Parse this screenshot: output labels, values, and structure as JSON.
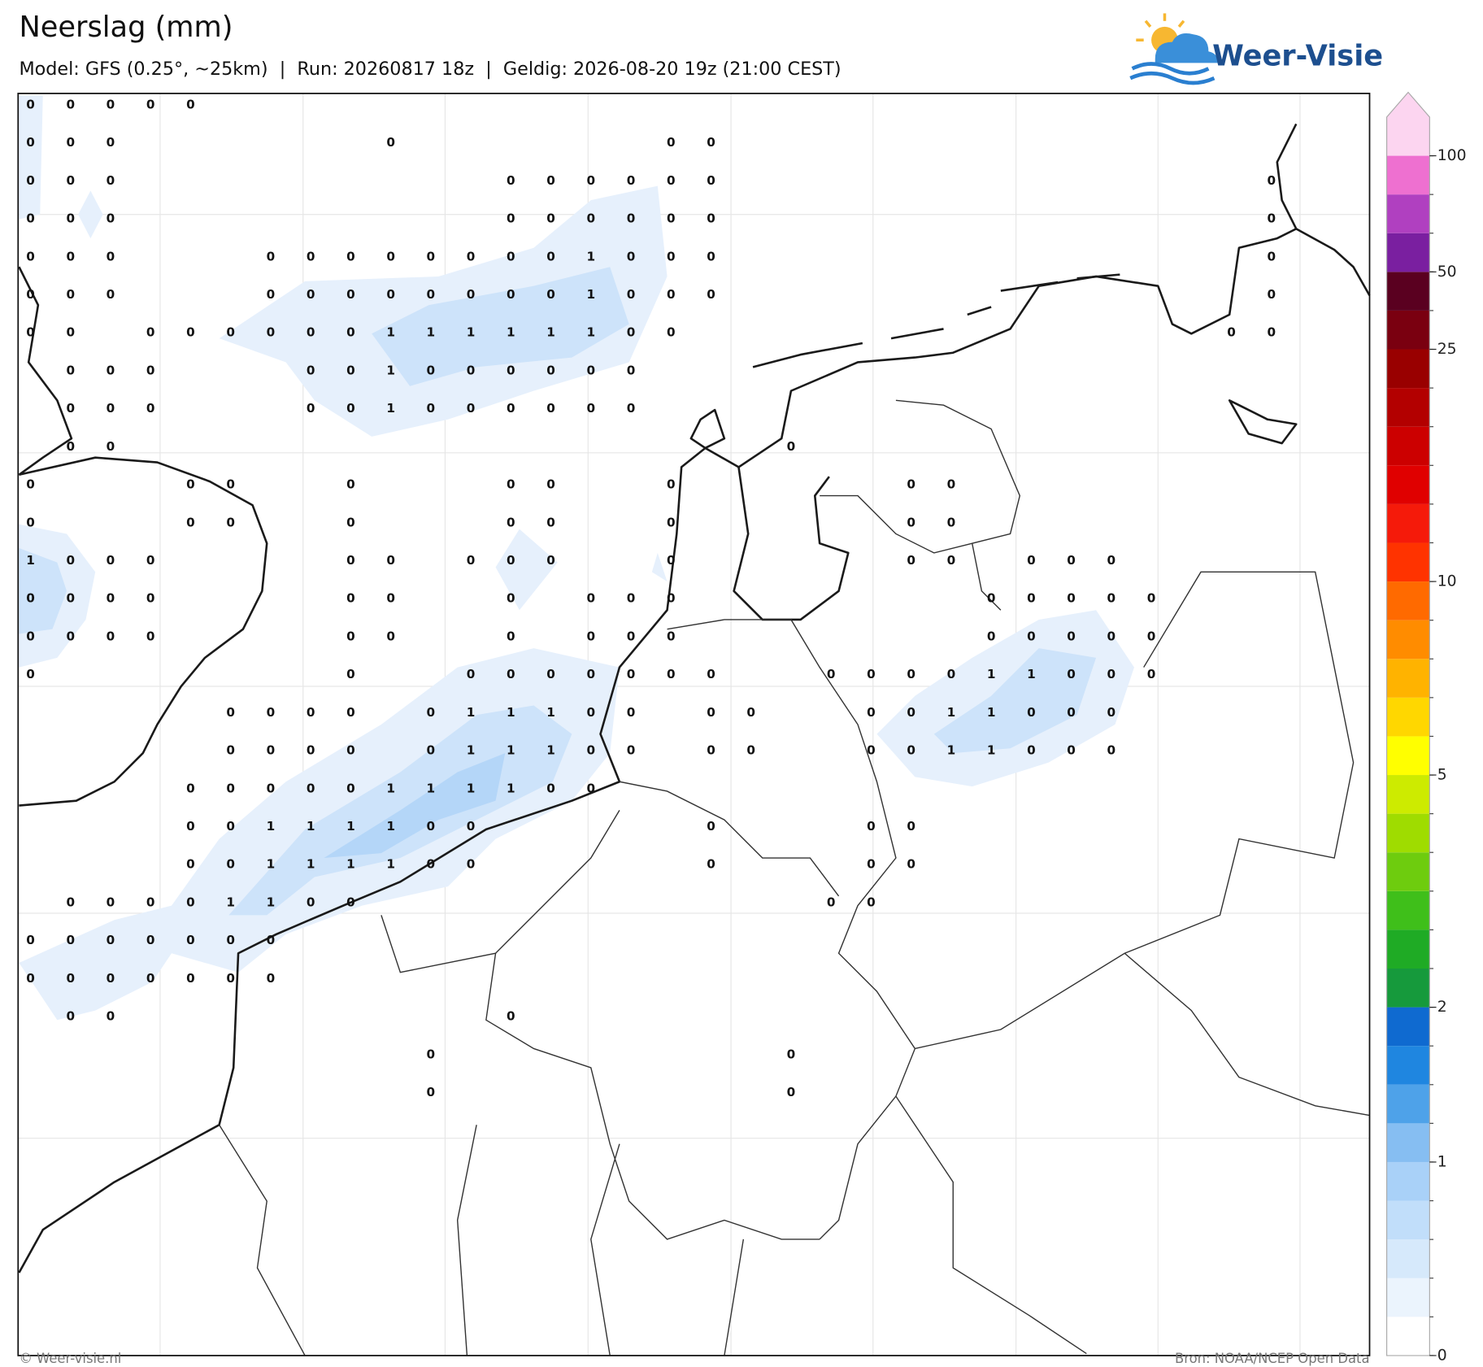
{
  "header": {
    "title": "Neerslag (mm)",
    "subtitle": "Model: GFS (0.25°, ~25km)  |  Run: 20260817 18z  |  Geldig: 2026-08-20 19z (21:00 CEST)"
  },
  "logo": {
    "text": "Weer-Visie"
  },
  "map": {
    "grid": [
      [
        0,
        0,
        0,
        0,
        0,
        null,
        null,
        null,
        null,
        null,
        null,
        null,
        null,
        null,
        null,
        null,
        null,
        null,
        null,
        null,
        null,
        null,
        null,
        null,
        null,
        null,
        null,
        null,
        null,
        null,
        null,
        null
      ],
      [
        0,
        0,
        0,
        null,
        null,
        null,
        null,
        null,
        null,
        0,
        null,
        null,
        null,
        null,
        null,
        null,
        0,
        0,
        null,
        null,
        null,
        null,
        null,
        null,
        null,
        null,
        null,
        null,
        null,
        null,
        null,
        null
      ],
      [
        0,
        0,
        0,
        null,
        null,
        null,
        null,
        null,
        null,
        null,
        null,
        null,
        0,
        0,
        0,
        0,
        0,
        0,
        null,
        null,
        null,
        null,
        null,
        null,
        null,
        null,
        null,
        null,
        null,
        null,
        null,
        0
      ],
      [
        0,
        0,
        0,
        null,
        null,
        null,
        null,
        null,
        null,
        null,
        null,
        null,
        0,
        0,
        0,
        0,
        0,
        0,
        null,
        null,
        null,
        null,
        null,
        null,
        null,
        null,
        null,
        null,
        null,
        null,
        null,
        0
      ],
      [
        0,
        0,
        0,
        null,
        null,
        null,
        0,
        0,
        0,
        0,
        0,
        0,
        0,
        0,
        1,
        0,
        0,
        0,
        null,
        null,
        null,
        null,
        null,
        null,
        null,
        null,
        null,
        null,
        null,
        null,
        null,
        0
      ],
      [
        0,
        0,
        0,
        null,
        null,
        null,
        0,
        0,
        0,
        0,
        0,
        0,
        0,
        0,
        1,
        0,
        0,
        0,
        null,
        null,
        null,
        null,
        null,
        null,
        null,
        null,
        null,
        null,
        null,
        null,
        null,
        0
      ],
      [
        0,
        0,
        null,
        0,
        0,
        0,
        0,
        0,
        0,
        1,
        1,
        1,
        1,
        1,
        1,
        0,
        0,
        null,
        null,
        null,
        null,
        null,
        null,
        null,
        null,
        null,
        null,
        null,
        null,
        null,
        0,
        0
      ],
      [
        null,
        0,
        0,
        0,
        null,
        null,
        null,
        0,
        0,
        1,
        0,
        0,
        0,
        0,
        0,
        0,
        null,
        null,
        null,
        null,
        null,
        null,
        null,
        null,
        null,
        null,
        null,
        null,
        null,
        null,
        null,
        null
      ],
      [
        null,
        0,
        0,
        0,
        null,
        null,
        null,
        0,
        0,
        1,
        0,
        0,
        0,
        0,
        0,
        0,
        null,
        null,
        null,
        null,
        null,
        null,
        null,
        null,
        null,
        null,
        null,
        null,
        null,
        null,
        null,
        null
      ],
      [
        null,
        0,
        0,
        null,
        null,
        null,
        null,
        null,
        null,
        null,
        null,
        null,
        null,
        null,
        null,
        null,
        null,
        null,
        null,
        0,
        null,
        null,
        null,
        null,
        null,
        null,
        null,
        null,
        null,
        null,
        null,
        null
      ],
      [
        0,
        null,
        null,
        null,
        0,
        0,
        null,
        null,
        0,
        null,
        null,
        null,
        0,
        0,
        null,
        null,
        0,
        null,
        null,
        null,
        null,
        null,
        0,
        0,
        null,
        null,
        null,
        null,
        null,
        null,
        null,
        null
      ],
      [
        0,
        null,
        null,
        null,
        0,
        0,
        null,
        null,
        0,
        null,
        null,
        null,
        0,
        0,
        null,
        null,
        0,
        null,
        null,
        null,
        null,
        null,
        0,
        0,
        null,
        null,
        null,
        null,
        null,
        null,
        null,
        null
      ],
      [
        1,
        0,
        0,
        0,
        null,
        null,
        null,
        null,
        0,
        0,
        null,
        0,
        0,
        0,
        null,
        null,
        0,
        null,
        null,
        null,
        null,
        null,
        0,
        0,
        null,
        0,
        0,
        0,
        null,
        null,
        null,
        null
      ],
      [
        0,
        0,
        0,
        0,
        null,
        null,
        null,
        null,
        0,
        0,
        null,
        null,
        0,
        null,
        0,
        0,
        0,
        null,
        null,
        null,
        null,
        null,
        null,
        null,
        0,
        0,
        0,
        0,
        0,
        null,
        null,
        null
      ],
      [
        0,
        0,
        0,
        0,
        null,
        null,
        null,
        null,
        0,
        0,
        null,
        null,
        0,
        null,
        0,
        0,
        0,
        null,
        null,
        null,
        null,
        null,
        null,
        null,
        0,
        0,
        0,
        0,
        0,
        null,
        null,
        null
      ],
      [
        0,
        null,
        null,
        null,
        null,
        null,
        null,
        null,
        0,
        null,
        null,
        0,
        0,
        0,
        0,
        0,
        0,
        0,
        null,
        null,
        0,
        0,
        0,
        0,
        1,
        1,
        0,
        0,
        0,
        null,
        null,
        null
      ],
      [
        null,
        null,
        null,
        null,
        null,
        0,
        0,
        0,
        0,
        null,
        0,
        1,
        1,
        1,
        0,
        0,
        null,
        0,
        0,
        null,
        null,
        0,
        0,
        1,
        1,
        0,
        0,
        0,
        null,
        null,
        null,
        null
      ],
      [
        null,
        null,
        null,
        null,
        null,
        0,
        0,
        0,
        0,
        null,
        0,
        1,
        1,
        1,
        0,
        0,
        null,
        0,
        0,
        null,
        null,
        0,
        0,
        1,
        1,
        0,
        0,
        0,
        null,
        null,
        null,
        null
      ],
      [
        null,
        null,
        null,
        null,
        0,
        0,
        0,
        0,
        0,
        1,
        1,
        1,
        1,
        0,
        0,
        null,
        null,
        null,
        null,
        null,
        null,
        null,
        null,
        null,
        null,
        null,
        null,
        null,
        null,
        null,
        null,
        null
      ],
      [
        null,
        null,
        null,
        null,
        0,
        0,
        1,
        1,
        1,
        1,
        0,
        0,
        null,
        null,
        null,
        null,
        null,
        0,
        null,
        null,
        null,
        0,
        0,
        null,
        null,
        null,
        null,
        null,
        null,
        null,
        null,
        null
      ],
      [
        null,
        null,
        null,
        null,
        0,
        0,
        1,
        1,
        1,
        1,
        0,
        0,
        null,
        null,
        null,
        null,
        null,
        0,
        null,
        null,
        null,
        0,
        0,
        null,
        null,
        null,
        null,
        null,
        null,
        null,
        null,
        null
      ],
      [
        null,
        0,
        0,
        0,
        0,
        1,
        1,
        0,
        0,
        null,
        null,
        null,
        null,
        null,
        null,
        null,
        null,
        null,
        null,
        null,
        0,
        0,
        null,
        null,
        null,
        null,
        null,
        null,
        null,
        null,
        null,
        null
      ],
      [
        0,
        0,
        0,
        0,
        0,
        0,
        0,
        null,
        null,
        null,
        null,
        null,
        null,
        null,
        null,
        null,
        null,
        null,
        null,
        null,
        null,
        null,
        null,
        null,
        null,
        null,
        null,
        null,
        null,
        null,
        null,
        null
      ],
      [
        0,
        0,
        0,
        0,
        0,
        0,
        0,
        null,
        null,
        null,
        null,
        null,
        null,
        null,
        null,
        null,
        null,
        null,
        null,
        null,
        null,
        null,
        null,
        null,
        null,
        null,
        null,
        null,
        null,
        null,
        null,
        null
      ],
      [
        null,
        0,
        0,
        null,
        null,
        null,
        null,
        null,
        null,
        null,
        null,
        null,
        0,
        null,
        null,
        null,
        null,
        null,
        null,
        null,
        null,
        null,
        null,
        null,
        null,
        null,
        null,
        null,
        null,
        null,
        null,
        null
      ],
      [
        null,
        null,
        null,
        null,
        null,
        null,
        null,
        null,
        null,
        null,
        0,
        null,
        null,
        null,
        null,
        null,
        null,
        null,
        null,
        0,
        null,
        null,
        null,
        null,
        null,
        null,
        null,
        null,
        null,
        null,
        null,
        null
      ],
      [
        null,
        null,
        null,
        null,
        null,
        null,
        null,
        null,
        null,
        null,
        0,
        null,
        null,
        null,
        null,
        null,
        null,
        null,
        null,
        0,
        null,
        null,
        null,
        null,
        null,
        null,
        null,
        null,
        null,
        null,
        null,
        null
      ]
    ]
  },
  "colorbar": {
    "levels": [
      0,
      0.2,
      0.4,
      0.6,
      0.8,
      1,
      1.25,
      1.5,
      1.75,
      2,
      2.5,
      3,
      3.5,
      4,
      4.5,
      5,
      6,
      7,
      8,
      9,
      10,
      12,
      14,
      16,
      18,
      20,
      25,
      35,
      50,
      60,
      80,
      100
    ],
    "colors": [
      "#ffffff",
      "#ebf4fd",
      "#d6e9fb",
      "#c1defa",
      "#a9d1f8",
      "#86bef2",
      "#4ea2e9",
      "#1f86e0",
      "#0f6ad0",
      "#169a3c",
      "#1fab25",
      "#3fbf1a",
      "#6ecc0e",
      "#9fdc00",
      "#cdeb00",
      "#ffff00",
      "#ffd700",
      "#ffb300",
      "#ff8c00",
      "#ff6a00",
      "#ff3300",
      "#f51a0a",
      "#e00000",
      "#cc0000",
      "#b30000",
      "#990000",
      "#7a0010",
      "#5a0020",
      "#7a1fa0",
      "#b040c0",
      "#ee70d0",
      "#fcd5f0"
    ],
    "ticks": [
      0,
      1,
      2,
      5,
      10,
      25,
      50,
      100
    ]
  },
  "footer": {
    "copyright": "© Weer-visie.nl",
    "source": "Bron: NOAA/NCEP Open Data"
  }
}
